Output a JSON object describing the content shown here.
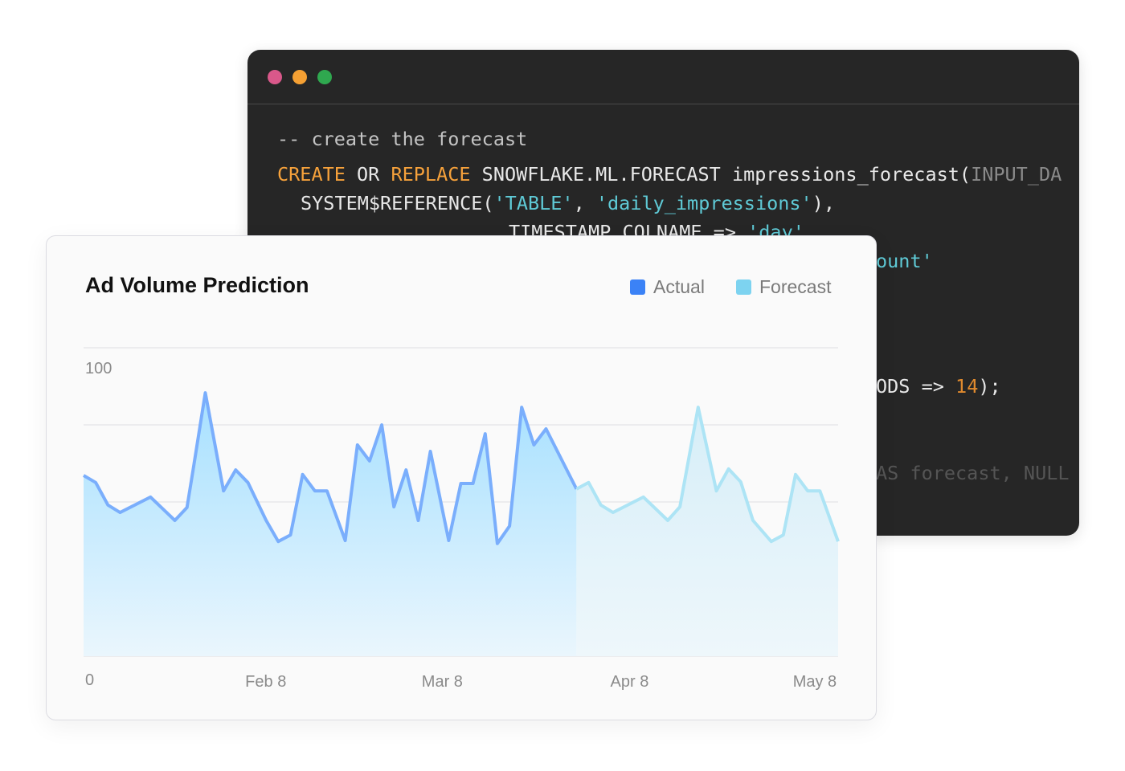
{
  "code_window": {
    "dots": [
      {
        "color": "#d9588a"
      },
      {
        "color": "#f5a033"
      },
      {
        "color": "#2fa84f"
      }
    ],
    "comment": "-- create the forecast",
    "line1": {
      "kw1": "CREATE",
      "op": " OR ",
      "kw2": "REPLACE",
      "rest": " SNOWFLAKE.ML.FORECAST impressions_forecast(",
      "faded": "INPUT_DA"
    },
    "line2": {
      "fn": "SYSTEM$REFERENCE(",
      "s1": "'TABLE'",
      "sep": ", ",
      "s2": "'daily_impressions'",
      "end": "),"
    },
    "line3": {
      "key": "TIMESTAMP_COLNAME => ",
      "val": "'day'"
    },
    "line4_fragment": "ount'",
    "line5_fragment": {
      "text": "ODS => ",
      "num": "14",
      "end": ");"
    },
    "line6_fragment": "AS forecast, NULL"
  },
  "chart_card": {
    "title": "Ad Volume Prediction",
    "legend": [
      {
        "label": "Actual",
        "color": "#3b82f6"
      },
      {
        "label": "Forecast",
        "color": "#7dd3f0"
      }
    ]
  },
  "chart_data": {
    "type": "area",
    "title": "Ad Volume Prediction",
    "ylim": [
      0,
      100
    ],
    "y_tick_labels": [
      "0",
      "100"
    ],
    "x_tick_labels": [
      {
        "label": "Feb 8",
        "date": "2024-02-08"
      },
      {
        "label": "Mar 8",
        "date": "2024-03-08"
      },
      {
        "label": "Apr 8",
        "date": "2024-04-08"
      },
      {
        "label": "May 8",
        "date": "2024-05-08"
      }
    ],
    "xlim": [
      "2024-01-09",
      "2024-05-12"
    ],
    "grid": true,
    "legend_position": "top-right",
    "series": [
      {
        "name": "Actual",
        "color": "#7aaefc",
        "points": [
          [
            "2024-01-09",
            58.6
          ],
          [
            "2024-01-11",
            56.3
          ],
          [
            "2024-01-13",
            49.0
          ],
          [
            "2024-01-15",
            46.6
          ],
          [
            "2024-01-20",
            51.6
          ],
          [
            "2024-01-24",
            44.0
          ],
          [
            "2024-01-26",
            48.2
          ],
          [
            "2024-01-27",
            60.4
          ],
          [
            "2024-01-29",
            85.4
          ],
          [
            "2024-02-01",
            53.6
          ],
          [
            "2024-02-03",
            60.4
          ],
          [
            "2024-02-05",
            56.3
          ],
          [
            "2024-02-08",
            44.0
          ],
          [
            "2024-02-10",
            37.2
          ],
          [
            "2024-02-12",
            39.3
          ],
          [
            "2024-02-14",
            58.9
          ],
          [
            "2024-02-16",
            53.6
          ],
          [
            "2024-02-18",
            53.6
          ],
          [
            "2024-02-21",
            37.5
          ],
          [
            "2024-02-23",
            68.5
          ],
          [
            "2024-02-25",
            63.3
          ],
          [
            "2024-02-27",
            75.0
          ],
          [
            "2024-02-29",
            48.4
          ],
          [
            "2024-03-02",
            60.4
          ],
          [
            "2024-03-04",
            44.0
          ],
          [
            "2024-03-06",
            66.4
          ],
          [
            "2024-03-09",
            37.5
          ],
          [
            "2024-03-11",
            56.0
          ],
          [
            "2024-03-13",
            56.0
          ],
          [
            "2024-03-15",
            72.1
          ],
          [
            "2024-03-17",
            36.5
          ],
          [
            "2024-03-19",
            42.2
          ],
          [
            "2024-03-21",
            80.7
          ],
          [
            "2024-03-23",
            68.5
          ],
          [
            "2024-03-25",
            73.7
          ],
          [
            "2024-03-30",
            54.2
          ]
        ]
      },
      {
        "name": "Forecast",
        "color": "#ade4f5",
        "points": [
          [
            "2024-03-30",
            54.2
          ],
          [
            "2024-04-01",
            56.3
          ],
          [
            "2024-04-03",
            49.0
          ],
          [
            "2024-04-05",
            46.6
          ],
          [
            "2024-04-10",
            51.6
          ],
          [
            "2024-04-14",
            44.0
          ],
          [
            "2024-04-16",
            48.4
          ],
          [
            "2024-04-19",
            80.7
          ],
          [
            "2024-04-22",
            53.6
          ],
          [
            "2024-04-24",
            60.7
          ],
          [
            "2024-04-26",
            56.5
          ],
          [
            "2024-04-28",
            44.0
          ],
          [
            "2024-05-01",
            37.2
          ],
          [
            "2024-05-03",
            39.3
          ],
          [
            "2024-05-05",
            58.9
          ],
          [
            "2024-05-07",
            53.6
          ],
          [
            "2024-05-09",
            53.6
          ],
          [
            "2024-05-12",
            37.2
          ]
        ]
      }
    ]
  }
}
